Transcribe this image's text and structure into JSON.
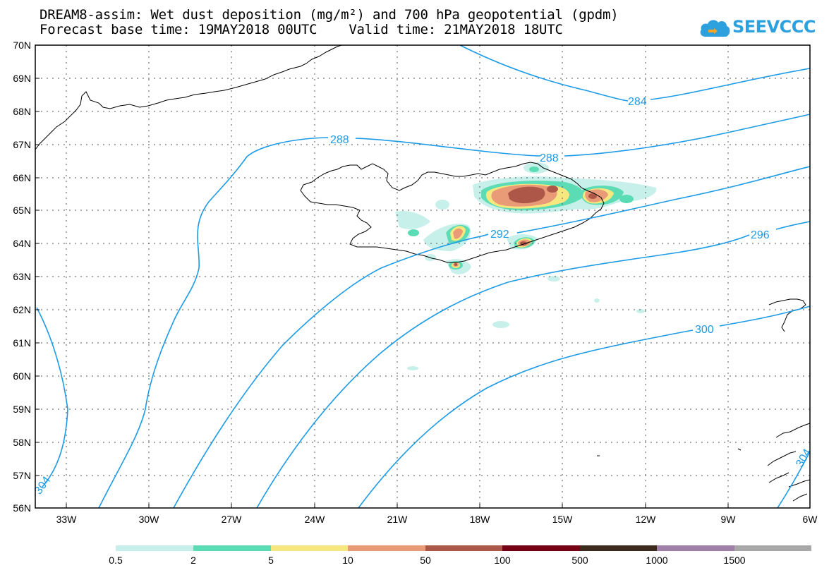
{
  "title": {
    "line1": "DREAM8-assim: Wet dust deposition (mg/m²) and 700 hPa geopotential (gpdm)",
    "line2": "Forecast base time: 19MAY2018 00UTC    Valid time: 21MAY2018 18UTC"
  },
  "logo": {
    "text": "SEEVCCC"
  },
  "axes": {
    "lat_labels": [
      "70N",
      "69N",
      "68N",
      "67N",
      "66N",
      "65N",
      "64N",
      "63N",
      "62N",
      "61N",
      "60N",
      "59N",
      "58N",
      "57N",
      "56N"
    ],
    "lon_labels": [
      "33W",
      "30W",
      "27W",
      "24W",
      "21W",
      "18W",
      "15W",
      "12W",
      "9W",
      "6W"
    ]
  },
  "contours": {
    "unit": "gpdm",
    "lines": [
      {
        "value": 284,
        "label": "284"
      },
      {
        "value": 288,
        "label": "288"
      },
      {
        "value": 292,
        "label": "292"
      },
      {
        "value": 296,
        "label": "296"
      },
      {
        "value": 300,
        "label": "300"
      },
      {
        "value": 304,
        "label": "304"
      }
    ]
  },
  "colorbar": {
    "labels": [
      "0.5",
      "2",
      "5",
      "10",
      "50",
      "100",
      "500",
      "1000",
      "1500"
    ],
    "colors": [
      "#c8f0ea",
      "#5cdcb4",
      "#f7e77f",
      "#e99a76",
      "#ad5749",
      "#750015",
      "#3c2a1c",
      "#a07fa8",
      "#a8a8a8"
    ]
  },
  "colors": {
    "contour": "#1c9be6",
    "coast": "#000000",
    "logo": "#2da1de"
  }
}
